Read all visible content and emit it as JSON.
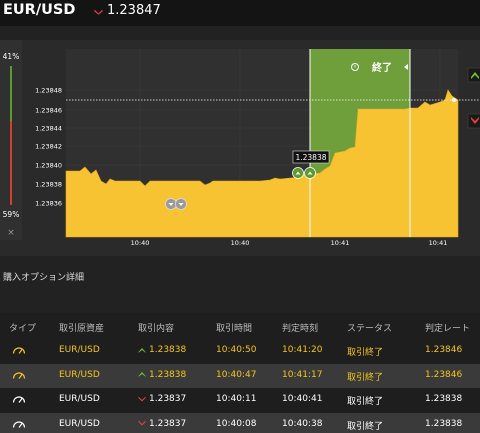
{
  "header": {
    "pair": "EUR/USD",
    "price": "1.23847",
    "direction": "down"
  },
  "gauge": {
    "top_percent": "41%",
    "bottom_percent": "59%",
    "close_symbol": "×"
  },
  "chart_data": {
    "type": "area",
    "y_ticks": [
      "1.23848",
      "1.23846",
      "1.23844",
      "1.23842",
      "1.23840",
      "1.23838",
      "1.23836"
    ],
    "x_ticks": [
      "10:40",
      "10:40",
      "10:41",
      "10:41"
    ],
    "current_value_label": "1.23838",
    "end_label": "終了",
    "colors": {
      "area": "#f8c332",
      "expiry_zone": "#6f9f3b",
      "background": "#2a2a2a"
    }
  },
  "section": {
    "title": "購入オプション詳細"
  },
  "table": {
    "columns": [
      "タイプ",
      "取引原資産",
      "取引内容",
      "取引時間",
      "判定時刻",
      "ステータス",
      "判定レート"
    ],
    "rows": [
      {
        "asset": "EUR/USD",
        "direction": "up",
        "content": "1.23838",
        "trade_time": "10:40:50",
        "judge_time": "10:41:20",
        "status": "取引終了",
        "rate": "1.23846",
        "highlight": "yellow"
      },
      {
        "asset": "EUR/USD",
        "direction": "up",
        "content": "1.23838",
        "trade_time": "10:40:47",
        "judge_time": "10:41:17",
        "status": "取引終了",
        "rate": "1.23846",
        "highlight": "yellow"
      },
      {
        "asset": "EUR/USD",
        "direction": "down",
        "content": "1.23837",
        "trade_time": "10:40:11",
        "judge_time": "10:40:41",
        "status": "取引終了",
        "rate": "1.23838",
        "highlight": "white"
      },
      {
        "asset": "EUR/USD",
        "direction": "down",
        "content": "1.23837",
        "trade_time": "10:40:08",
        "judge_time": "10:40:38",
        "status": "取引終了",
        "rate": "1.23838",
        "highlight": "white"
      }
    ]
  }
}
